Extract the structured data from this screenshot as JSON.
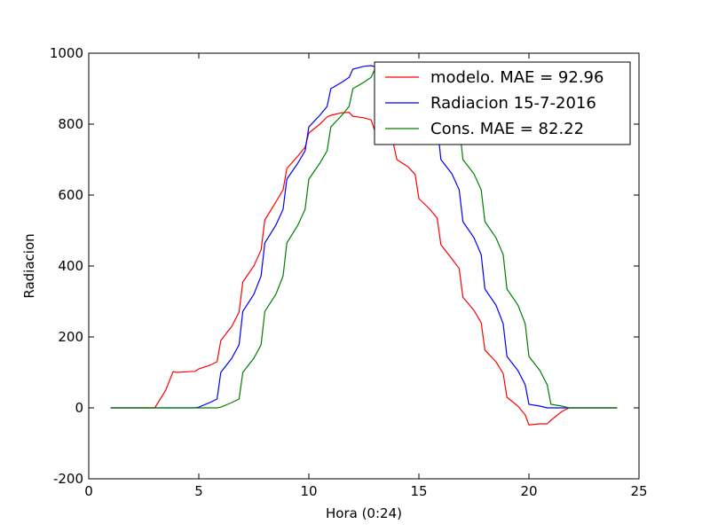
{
  "chart_data": {
    "type": "line",
    "title": "",
    "xlabel": "Hora (0:24)",
    "ylabel": "Radiacion",
    "xlim": [
      0,
      25
    ],
    "ylim": [
      -200,
      1000
    ],
    "xticks": [
      0,
      5,
      10,
      15,
      20,
      25
    ],
    "yticks": [
      -200,
      0,
      200,
      400,
      600,
      800,
      1000
    ],
    "grid": false,
    "legend_position": "top-right",
    "series": [
      {
        "name": "modelo. MAE = 92.96",
        "color": "#ff0000",
        "points": [
          [
            1,
            0
          ],
          [
            1.5,
            0
          ],
          [
            2,
            0
          ],
          [
            2.5,
            0
          ],
          [
            3,
            0
          ],
          [
            3.5,
            50
          ],
          [
            3.83,
            102
          ],
          [
            4,
            100
          ],
          [
            4.5,
            102
          ],
          [
            4.83,
            103
          ],
          [
            5,
            110
          ],
          [
            5.5,
            120
          ],
          [
            5.83,
            130
          ],
          [
            6,
            190
          ],
          [
            6.5,
            230
          ],
          [
            6.83,
            270
          ],
          [
            7,
            355
          ],
          [
            7.5,
            400
          ],
          [
            7.83,
            445
          ],
          [
            8,
            530
          ],
          [
            8.5,
            580
          ],
          [
            8.83,
            615
          ],
          [
            9,
            675
          ],
          [
            9.5,
            710
          ],
          [
            9.83,
            735
          ],
          [
            10,
            775
          ],
          [
            10.5,
            800
          ],
          [
            10.83,
            820
          ],
          [
            11,
            825
          ],
          [
            11.5,
            832
          ],
          [
            11.83,
            833
          ],
          [
            12,
            822
          ],
          [
            12.5,
            818
          ],
          [
            12.83,
            812
          ],
          [
            13,
            780
          ],
          [
            13.5,
            760
          ],
          [
            13.83,
            748
          ],
          [
            14,
            700
          ],
          [
            14.5,
            680
          ],
          [
            14.83,
            658
          ],
          [
            15,
            590
          ],
          [
            15.5,
            560
          ],
          [
            15.83,
            535
          ],
          [
            16,
            460
          ],
          [
            16.5,
            420
          ],
          [
            16.83,
            393
          ],
          [
            17,
            312
          ],
          [
            17.5,
            275
          ],
          [
            17.83,
            240
          ],
          [
            18,
            163
          ],
          [
            18.5,
            130
          ],
          [
            18.83,
            97
          ],
          [
            19,
            30
          ],
          [
            19.5,
            5
          ],
          [
            19.83,
            -20
          ],
          [
            20,
            -48
          ],
          [
            20.5,
            -45
          ],
          [
            20.83,
            -45
          ],
          [
            21,
            -35
          ],
          [
            21.5,
            -10
          ],
          [
            21.83,
            0
          ],
          [
            22,
            0
          ],
          [
            22.5,
            0
          ],
          [
            23,
            0
          ],
          [
            23.5,
            0
          ],
          [
            24,
            0
          ]
        ]
      },
      {
        "name": "Radiacion 15-7-2016",
        "color": "#0000ff",
        "points": [
          [
            1,
            0
          ],
          [
            2,
            0
          ],
          [
            3,
            0
          ],
          [
            4,
            0
          ],
          [
            4.83,
            0
          ],
          [
            5,
            2
          ],
          [
            5.5,
            15
          ],
          [
            5.83,
            25
          ],
          [
            6,
            100
          ],
          [
            6.5,
            140
          ],
          [
            6.83,
            178
          ],
          [
            7,
            272
          ],
          [
            7.5,
            320
          ],
          [
            7.83,
            372
          ],
          [
            8,
            465
          ],
          [
            8.5,
            515
          ],
          [
            8.83,
            560
          ],
          [
            9,
            645
          ],
          [
            9.5,
            690
          ],
          [
            9.83,
            725
          ],
          [
            10,
            792
          ],
          [
            10.5,
            825
          ],
          [
            10.83,
            850
          ],
          [
            11,
            900
          ],
          [
            11.5,
            918
          ],
          [
            11.83,
            932
          ],
          [
            12,
            955
          ],
          [
            12.5,
            963
          ],
          [
            12.83,
            965
          ],
          [
            13,
            962
          ],
          [
            13.5,
            960
          ],
          [
            13.83,
            950
          ],
          [
            14,
            940
          ],
          [
            14.5,
            925
          ],
          [
            14.83,
            912
          ],
          [
            15,
            860
          ],
          [
            15.5,
            830
          ],
          [
            15.83,
            800
          ],
          [
            16,
            700
          ],
          [
            16.5,
            660
          ],
          [
            16.83,
            615
          ],
          [
            17,
            525
          ],
          [
            17.5,
            480
          ],
          [
            17.83,
            432
          ],
          [
            18,
            335
          ],
          [
            18.5,
            290
          ],
          [
            18.83,
            237
          ],
          [
            19,
            145
          ],
          [
            19.5,
            105
          ],
          [
            19.83,
            65
          ],
          [
            20,
            10
          ],
          [
            20.5,
            5
          ],
          [
            20.83,
            0
          ],
          [
            21,
            0
          ],
          [
            21.5,
            0
          ],
          [
            21.83,
            0
          ],
          [
            22,
            0
          ],
          [
            23,
            0
          ],
          [
            24,
            0
          ]
        ]
      },
      {
        "name": "Cons. MAE = 82.22",
        "color": "#008000",
        "points": [
          [
            1,
            0
          ],
          [
            2,
            0
          ],
          [
            3,
            0
          ],
          [
            4,
            0
          ],
          [
            5,
            0
          ],
          [
            5.83,
            0
          ],
          [
            6,
            2
          ],
          [
            6.5,
            15
          ],
          [
            6.83,
            25
          ],
          [
            7,
            100
          ],
          [
            7.5,
            140
          ],
          [
            7.83,
            178
          ],
          [
            8,
            272
          ],
          [
            8.5,
            320
          ],
          [
            8.83,
            372
          ],
          [
            9,
            465
          ],
          [
            9.5,
            515
          ],
          [
            9.83,
            560
          ],
          [
            10,
            645
          ],
          [
            10.5,
            690
          ],
          [
            10.83,
            725
          ],
          [
            11,
            792
          ],
          [
            11.5,
            825
          ],
          [
            11.83,
            850
          ],
          [
            12,
            900
          ],
          [
            12.5,
            918
          ],
          [
            12.83,
            932
          ],
          [
            13,
            955
          ],
          [
            13.5,
            963
          ],
          [
            13.83,
            965
          ],
          [
            14,
            962
          ],
          [
            14.5,
            960
          ],
          [
            14.83,
            950
          ],
          [
            15,
            940
          ],
          [
            15.5,
            925
          ],
          [
            15.83,
            912
          ],
          [
            16,
            860
          ],
          [
            16.5,
            830
          ],
          [
            16.83,
            800
          ],
          [
            17,
            700
          ],
          [
            17.5,
            660
          ],
          [
            17.83,
            615
          ],
          [
            18,
            525
          ],
          [
            18.5,
            480
          ],
          [
            18.83,
            432
          ],
          [
            19,
            335
          ],
          [
            19.5,
            290
          ],
          [
            19.83,
            237
          ],
          [
            20,
            145
          ],
          [
            20.5,
            105
          ],
          [
            20.83,
            65
          ],
          [
            21,
            10
          ],
          [
            21.5,
            5
          ],
          [
            21.83,
            0
          ],
          [
            22,
            0
          ],
          [
            23,
            0
          ],
          [
            24,
            0
          ]
        ]
      }
    ]
  }
}
